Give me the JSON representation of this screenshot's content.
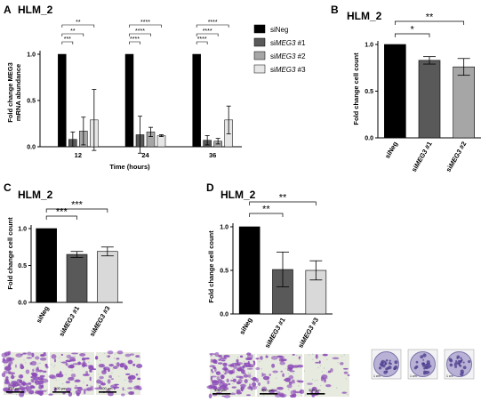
{
  "panels": [
    {
      "letter": "A",
      "title": "HLM_2",
      "chart_data": {
        "type": "bar",
        "ylabel_lines": [
          "Fold change MEG3",
          "mRNA abundance"
        ],
        "xlabel": "Time (hours)",
        "categories": [
          "12",
          "24",
          "36"
        ],
        "ylim": [
          0,
          1.0
        ],
        "yticks": [
          "0.0",
          "0.5",
          "1.0"
        ],
        "legend_position": "top-right",
        "series": [
          {
            "name": "siNeg",
            "color": "#000000",
            "values": [
              1.0,
              1.0,
              1.0
            ],
            "errors": [
              0,
              0,
              0
            ]
          },
          {
            "name": "siMEG3 #1",
            "color": "#595959",
            "values": [
              0.08,
              0.13,
              0.07
            ],
            "errors": [
              0.08,
              0.2,
              0.05
            ]
          },
          {
            "name": "siMEG3 #2",
            "color": "#a6a6a6",
            "values": [
              0.17,
              0.16,
              0.06
            ],
            "errors": [
              0.15,
              0.05,
              0.03
            ]
          },
          {
            "name": "siMEG3 #3",
            "color": "#e6e6e6",
            "values": [
              0.29,
              0.12,
              0.29
            ],
            "errors": [
              0.33,
              0.01,
              0.15
            ]
          }
        ],
        "significance": [
          {
            "group": 0,
            "from": 0,
            "to": 1,
            "level": 3,
            "label": "***"
          },
          {
            "group": 0,
            "from": 0,
            "to": 2,
            "level": 2,
            "label": "**"
          },
          {
            "group": 0,
            "from": 0,
            "to": 3,
            "level": 1,
            "label": "**"
          },
          {
            "group": 1,
            "from": 0,
            "to": 1,
            "level": 3,
            "label": "****"
          },
          {
            "group": 1,
            "from": 0,
            "to": 2,
            "level": 2,
            "label": "****"
          },
          {
            "group": 1,
            "from": 0,
            "to": 3,
            "level": 1,
            "label": "****"
          },
          {
            "group": 2,
            "from": 0,
            "to": 1,
            "level": 3,
            "label": "****"
          },
          {
            "group": 2,
            "from": 0,
            "to": 2,
            "level": 2,
            "label": "****"
          },
          {
            "group": 2,
            "from": 0,
            "to": 3,
            "level": 1,
            "label": "****"
          }
        ]
      }
    },
    {
      "letter": "B",
      "title": "HLM_2",
      "chart_data": {
        "type": "bar",
        "ylabel": "Fold change cell count",
        "categories": [
          "siNeg",
          "siMEG3 #1",
          "siMEG3 #2"
        ],
        "values": [
          1.0,
          0.83,
          0.76
        ],
        "errors": [
          0,
          0.04,
          0.09
        ],
        "colors": [
          "#000000",
          "#595959",
          "#a6a6a6"
        ],
        "ylim": [
          0,
          1.0
        ],
        "yticks": [
          "0.0",
          "0.5",
          "1.0"
        ],
        "significance": [
          {
            "from": 0,
            "to": 1,
            "level": 2,
            "label": "*"
          },
          {
            "from": 0,
            "to": 2,
            "level": 1,
            "label": "**"
          }
        ]
      },
      "images": [
        {
          "scale": "1 cm",
          "tone": "dish"
        },
        {
          "scale": "1 cm",
          "tone": "dish"
        },
        {
          "scale": "1 cm",
          "tone": "dish"
        }
      ]
    },
    {
      "letter": "C",
      "title": "HLM_2",
      "chart_data": {
        "type": "bar",
        "ylabel": "Fold change cell count",
        "categories": [
          "siNeg",
          "siMEG3 #1",
          "siMEG3 #3"
        ],
        "values": [
          1.0,
          0.65,
          0.69
        ],
        "errors": [
          0,
          0.04,
          0.06
        ],
        "colors": [
          "#000000",
          "#595959",
          "#d9d9d9"
        ],
        "ylim": [
          0,
          1.0
        ],
        "yticks": [
          "0.0",
          "0.5",
          "1.0"
        ],
        "significance": [
          {
            "from": 0,
            "to": 1,
            "level": 2,
            "label": "***"
          },
          {
            "from": 0,
            "to": 2,
            "level": 1,
            "label": "***"
          }
        ]
      },
      "images": [
        {
          "scale": "300 µm",
          "tone": "dense"
        },
        {
          "scale": "300 µm",
          "tone": "medium"
        },
        {
          "scale": "300 µm",
          "tone": "medium"
        }
      ]
    },
    {
      "letter": "D",
      "title": "HLM_2",
      "chart_data": {
        "type": "bar",
        "ylabel": "Fold change cell count",
        "categories": [
          "siNeg",
          "siMEG3 #1",
          "siMEG3 #3"
        ],
        "values": [
          1.0,
          0.51,
          0.5
        ],
        "errors": [
          0,
          0.2,
          0.11
        ],
        "colors": [
          "#000000",
          "#595959",
          "#d9d9d9"
        ],
        "ylim": [
          0,
          1.0
        ],
        "yticks": [
          "0.0",
          "0.5",
          "1.0"
        ],
        "significance": [
          {
            "from": 0,
            "to": 1,
            "level": 2,
            "label": "**"
          },
          {
            "from": 0,
            "to": 2,
            "level": 1,
            "label": "**"
          }
        ]
      },
      "images": [
        {
          "scale": "300 µm",
          "tone": "dense"
        },
        {
          "scale": "300 µm",
          "tone": "medium"
        },
        {
          "scale": "300 µm",
          "tone": "sparse"
        }
      ]
    }
  ]
}
